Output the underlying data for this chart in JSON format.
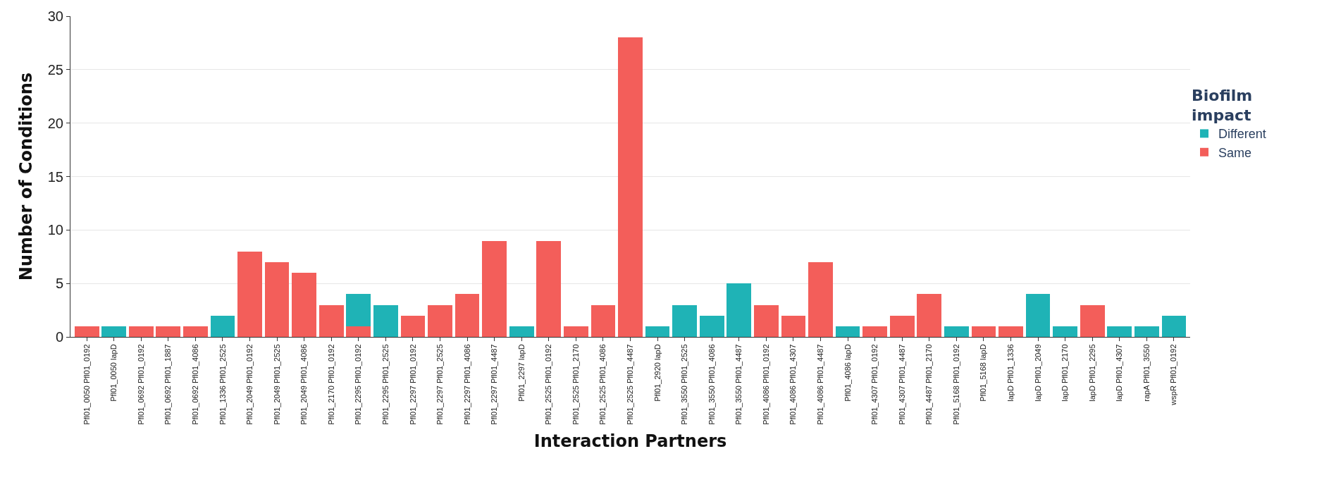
{
  "chart_data": {
    "type": "bar",
    "stacked": true,
    "xlabel": "Interaction Partners",
    "ylabel": "Number of Conditions",
    "legend_title": "Biofilm impact",
    "legend": "right",
    "categories": [
      "Pfl01_0050 Pfl01_0192",
      "Pfl01_0050 lapD",
      "Pfl01_0692 Pfl01_0192",
      "Pfl01_0692 Pfl01_1887",
      "Pfl01_0692 Pfl01_4086",
      "Pfl01_1336 Pfl01_2525",
      "Pfl01_2049 Pfl01_0192",
      "Pfl01_2049 Pfl01_2525",
      "Pfl01_2049 Pfl01_4086",
      "Pfl01_2170 Pfl01_0192",
      "Pfl01_2295 Pfl01_0192",
      "Pfl01_2295 Pfl01_2525",
      "Pfl01_2297 Pfl01_0192",
      "Pfl01_2297 Pfl01_2525",
      "Pfl01_2297 Pfl01_4086",
      "Pfl01_2297 Pfl01_4487",
      "Pfl01_2297 lapD",
      "Pfl01_2525 Pfl01_0192",
      "Pfl01_2525 Pfl01_2170",
      "Pfl01_2525 Pfl01_4086",
      "Pfl01_2525 Pfl01_4487",
      "Pfl01_2920 lapD",
      "Pfl01_3550 Pfl01_2525",
      "Pfl01_3550 Pfl01_4086",
      "Pfl01_3550 Pfl01_4487",
      "Pfl01_4086 Pfl01_0192",
      "Pfl01_4086 Pfl01_4307",
      "Pfl01_4086 Pfl01_4487",
      "Pfl01_4086 lapD",
      "Pfl01_4307 Pfl01_0192",
      "Pfl01_4307 Pfl01_4487",
      "Pfl01_4487 Pfl01_2170",
      "Pfl01_5168 Pfl01_0192",
      "Pfl01_5168 lapD",
      "lapD Pfl01_1336",
      "lapD Pfl01_2049",
      "lapD Pfl01_2170",
      "lapD Pfl01_2295",
      "lapD Pfl01_4307",
      "rapA Pfl01_3550",
      "wspR Pfl01_0192"
    ],
    "series": [
      {
        "name": "Same",
        "color": "#f35e5a",
        "values": [
          1,
          null,
          1,
          1,
          1,
          null,
          8,
          7,
          6,
          3,
          1,
          null,
          2,
          3,
          4,
          9,
          null,
          9,
          1,
          3,
          28,
          null,
          null,
          null,
          null,
          3,
          2,
          7,
          null,
          1,
          2,
          4,
          null,
          1,
          1,
          null,
          null,
          3,
          null,
          null,
          null
        ]
      },
      {
        "name": "Different",
        "color": "#1fb3b6",
        "values": [
          null,
          1,
          null,
          null,
          null,
          2,
          null,
          null,
          null,
          null,
          3,
          3,
          null,
          null,
          null,
          null,
          1,
          null,
          null,
          null,
          null,
          1,
          3,
          2,
          5,
          null,
          null,
          null,
          1,
          null,
          null,
          null,
          1,
          null,
          null,
          4,
          1,
          null,
          1,
          1,
          2
        ]
      }
    ],
    "ylim": [
      0,
      30
    ],
    "yticks": [
      0,
      5,
      10,
      15,
      20,
      25,
      30
    ],
    "grid": "y"
  }
}
